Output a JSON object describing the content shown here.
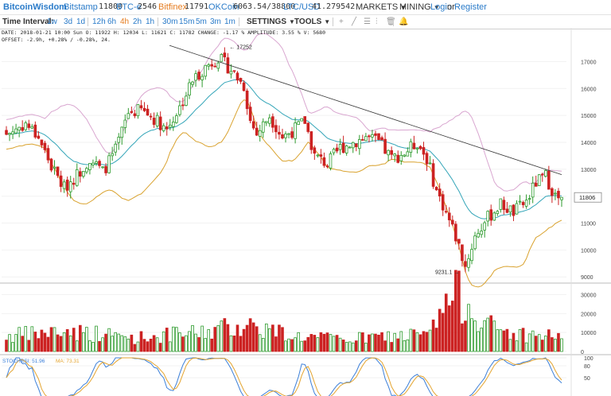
{
  "header": {
    "brand": "BitcoinWisdom",
    "exchanges": [
      {
        "name": "Bitstamp",
        "price": "11800",
        "color": "#2a7bc9"
      },
      {
        "name": "BTC-e",
        "price": "2546",
        "color": "#2a7bc9"
      },
      {
        "name": "Bitfinex",
        "price": "11791",
        "color": "#e57b1e"
      },
      {
        "name": "OKCoin",
        "price": "6063.54/38800",
        "color": "#2a7bc9"
      },
      {
        "name": "LTC/USD",
        "price": "41.279542",
        "color": "#2a7bc9"
      }
    ],
    "menus": {
      "markets": "MARKETS",
      "mining": "MINING"
    },
    "login": "Login",
    "or": "or",
    "register": "Register"
  },
  "toolbar": {
    "time_interval_label": "Time Interval:",
    "intervals": [
      "1w",
      "3d",
      "1d",
      "12h",
      "6h",
      "4h",
      "2h",
      "1h",
      "30m",
      "15m",
      "5m",
      "3m",
      "1m"
    ],
    "active_interval": "4h",
    "settings": "SETTINGS",
    "tools": "TOOLS"
  },
  "info": {
    "line1": "DATE: 2018-01-21 10:00 Sun   O: 11922   H: 12034   L: 11621   C: 11782   CHANGE: -1.17 %   AMPLITUDE: 3.55 %   V: 5680",
    "line2": "OFFSET: -2.9h, +0.28% / -0.28%, 24."
  },
  "indicators": {
    "stochrsi": "STOCHRSI: 51.96",
    "ma": "MA: 73.31"
  },
  "colors": {
    "up": "#2e9b2e",
    "down": "#cc2222",
    "ema": "#33a5b8",
    "bb_upper": "#d9a6d0",
    "bb_lower": "#d9a22e",
    "trendline": "#333333",
    "stoch_k": "#3b7fd9",
    "stoch_d": "#e5a530"
  },
  "chart_data": {
    "type": "candlestick",
    "pair": "BTC/USD",
    "interval": "4h",
    "price_axis_ticks": [
      9000,
      10000,
      11000,
      12000,
      13000,
      14000,
      15000,
      16000,
      17000
    ],
    "volume_axis_ticks": [
      0,
      10000,
      20000,
      30000
    ],
    "stoch_axis_ticks": [
      50,
      80,
      100
    ],
    "ylim_price": [
      8800,
      17900
    ],
    "ylim_volume": [
      0,
      34000
    ],
    "ylim_stoch": [
      0,
      100
    ],
    "annotations": {
      "high": "17252",
      "low": "9231.1"
    },
    "current_price_label": "11806",
    "trendline": {
      "from_price": 17600,
      "to_price": 12800
    },
    "waypoints_close": [
      [
        0,
        14300
      ],
      [
        6,
        14700
      ],
      [
        10,
        14200
      ],
      [
        14,
        13100
      ],
      [
        18,
        12300
      ],
      [
        22,
        12800
      ],
      [
        26,
        13400
      ],
      [
        30,
        12900
      ],
      [
        34,
        13700
      ],
      [
        38,
        15100
      ],
      [
        42,
        15200
      ],
      [
        46,
        14900
      ],
      [
        50,
        14500
      ],
      [
        54,
        15300
      ],
      [
        58,
        16300
      ],
      [
        62,
        16800
      ],
      [
        66,
        17150
      ],
      [
        70,
        16700
      ],
      [
        74,
        16100
      ],
      [
        76,
        14800
      ],
      [
        78,
        14300
      ],
      [
        82,
        15000
      ],
      [
        86,
        14200
      ],
      [
        90,
        14500
      ],
      [
        93,
        14800
      ],
      [
        96,
        13500
      ],
      [
        100,
        13200
      ],
      [
        104,
        13800
      ],
      [
        108,
        14000
      ],
      [
        112,
        14200
      ],
      [
        116,
        14000
      ],
      [
        120,
        13400
      ],
      [
        124,
        13600
      ],
      [
        128,
        14000
      ],
      [
        131,
        13400
      ],
      [
        134,
        12200
      ],
      [
        137,
        11400
      ],
      [
        140,
        10500
      ],
      [
        143,
        9400
      ],
      [
        146,
        10500
      ],
      [
        150,
        11200
      ],
      [
        154,
        11700
      ],
      [
        158,
        11400
      ],
      [
        162,
        11800
      ],
      [
        165,
        12500
      ],
      [
        168,
        12750
      ],
      [
        171,
        12000
      ],
      [
        173,
        11780
      ]
    ],
    "waypoints_volume": [
      [
        0,
        9000
      ],
      [
        20,
        12000
      ],
      [
        40,
        8000
      ],
      [
        60,
        11000
      ],
      [
        75,
        16000
      ],
      [
        90,
        9000
      ],
      [
        105,
        7000
      ],
      [
        120,
        9000
      ],
      [
        132,
        10000
      ],
      [
        137,
        28000
      ],
      [
        140,
        33000
      ],
      [
        143,
        30000
      ],
      [
        146,
        24000
      ],
      [
        152,
        13000
      ],
      [
        160,
        10000
      ],
      [
        168,
        9000
      ],
      [
        173,
        10000
      ]
    ],
    "stochrsi_summary": {
      "stochrsi": 51.96,
      "ma": 73.31
    }
  }
}
